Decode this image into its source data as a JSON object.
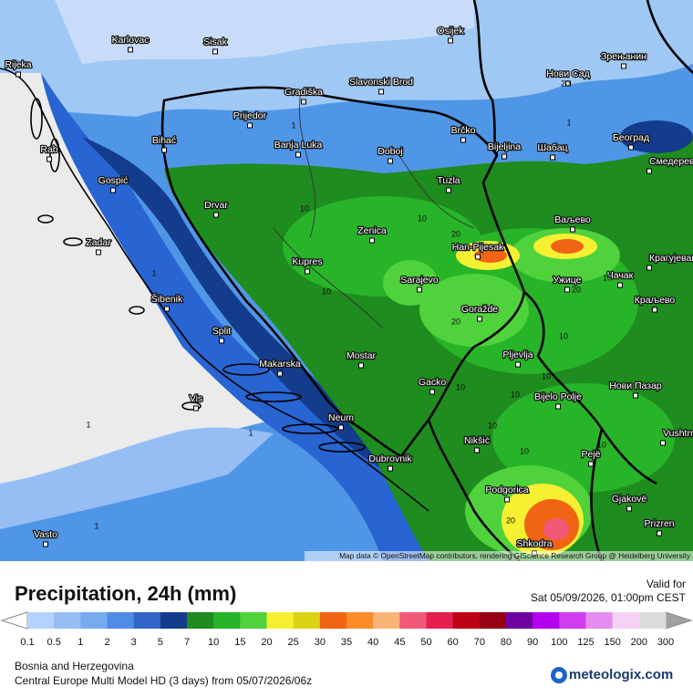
{
  "header": {
    "title": "Precipitation, 24h (mm)",
    "valid_label": "Valid for",
    "valid_time": "Sat 05/09/2026, 01:00pm CEST"
  },
  "legend": {
    "ticks": [
      0.1,
      0.5,
      1,
      2,
      3,
      5,
      7,
      10,
      15,
      20,
      25,
      30,
      35,
      40,
      45,
      50,
      60,
      70,
      80,
      90,
      100,
      125,
      150,
      200,
      300
    ],
    "colors": [
      "#ffffff",
      "#b4d2ff",
      "#96bef5",
      "#78aaf0",
      "#508ce6",
      "#3264c8",
      "#143c8c",
      "#1e8c1e",
      "#28b428",
      "#50d23c",
      "#f5f032",
      "#dcd214",
      "#f06414",
      "#fa8c28",
      "#fab478",
      "#f05a78",
      "#e61e50",
      "#be0014",
      "#960014",
      "#6e00a0",
      "#b400f0",
      "#d23cf0",
      "#e68cf0",
      "#f5d2f5",
      "#dcdcdc",
      "#a0a0a0"
    ]
  },
  "footer": {
    "region": "Bosnia and Herzegovina",
    "model": "Central Europe Multi Model HD (3 days) from 05/07/2026/06z",
    "brand": "meteologix.com"
  },
  "map": {
    "attribution": "Map data © OpenStreetMap contributors, rendering GIScience Research Group @ Heidelberg University",
    "cities": [
      "Karlovac",
      "Sisak",
      "Osijek",
      "Rijeka",
      "Нови Сад",
      "Зрењанин",
      "Gradiška",
      "Slavonski Brod",
      "Prijedor",
      "Banja Luka",
      "Doboj",
      "Brčko",
      "Bijeljina",
      "Шабац",
      "Београд",
      "Смедерево",
      "Bihać",
      "Rab",
      "Gospić",
      "Tuzla",
      "Drvar",
      "Zenica",
      "Ваљево",
      "Han-Pijesak",
      "Zadar",
      "Kupres",
      "Крагујевац",
      "Sarajevo",
      "Ужице",
      "Чачак",
      "Šibenik",
      "Goražde",
      "Краљево",
      "Split",
      "Pljevlja",
      "Mostar",
      "Makarska",
      "Gacko",
      "Bijelo Polje",
      "Нови Пазар",
      "Vis",
      "Neum",
      "Vushtrri",
      "Nikšić",
      "Pejë",
      "Dubrovnik",
      "Podgorica",
      "Gjakovë",
      "Prizren",
      "Vasto",
      "Shkodra"
    ],
    "contour_labels": [
      1,
      1,
      1,
      1,
      1,
      1,
      10,
      10,
      10,
      10,
      10,
      10,
      10,
      10,
      10,
      10,
      10,
      20,
      20,
      20,
      20,
      20
    ]
  }
}
